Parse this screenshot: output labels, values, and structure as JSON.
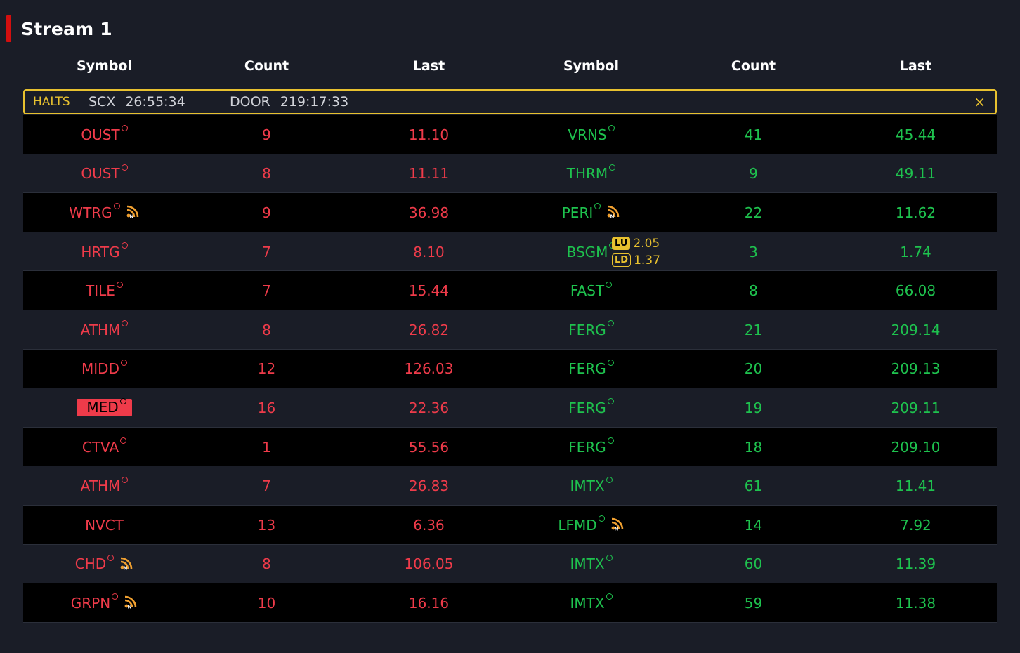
{
  "header": {
    "title": "Stream 1"
  },
  "columns": [
    "Symbol",
    "Count",
    "Last",
    "Symbol",
    "Count",
    "Last"
  ],
  "halts": {
    "label": "HALTS",
    "items": [
      {
        "symbol": "SCX",
        "time": "26:55:34"
      },
      {
        "symbol": "DOOR",
        "time": "219:17:33"
      }
    ],
    "close_icon": "×"
  },
  "colors": {
    "down": "#ef3b4a",
    "up": "#1ec24e",
    "halt_accent": "#e8c12f",
    "news": "#f0a030"
  },
  "rows": [
    {
      "left": {
        "symbol": "OUST",
        "count": "9",
        "last": "11.10",
        "dot": true,
        "news": false
      },
      "right": {
        "symbol": "VRNS",
        "count": "41",
        "last": "45.44",
        "dot": true,
        "news": false
      }
    },
    {
      "left": {
        "symbol": "OUST",
        "count": "8",
        "last": "11.11",
        "dot": true,
        "news": false
      },
      "right": {
        "symbol": "THRM",
        "count": "9",
        "last": "49.11",
        "dot": true,
        "news": false
      }
    },
    {
      "left": {
        "symbol": "WTRG",
        "count": "9",
        "last": "36.98",
        "dot": true,
        "news": true
      },
      "right": {
        "symbol": "PERI",
        "count": "22",
        "last": "11.62",
        "dot": true,
        "news": true
      }
    },
    {
      "left": {
        "symbol": "HRTG",
        "count": "7",
        "last": "8.10",
        "dot": true,
        "news": false
      },
      "right": {
        "symbol": "BSGM",
        "count": "3",
        "last": "1.74",
        "dot": true,
        "news": false,
        "luld": {
          "lu_label": "LU",
          "lu_value": "2.05",
          "ld_label": "LD",
          "ld_value": "1.37"
        }
      }
    },
    {
      "left": {
        "symbol": "TILE",
        "count": "7",
        "last": "15.44",
        "dot": true,
        "news": false
      },
      "right": {
        "symbol": "FAST",
        "count": "8",
        "last": "66.08",
        "dot": true,
        "news": false
      }
    },
    {
      "left": {
        "symbol": "ATHM",
        "count": "8",
        "last": "26.82",
        "dot": true,
        "news": false
      },
      "right": {
        "symbol": "FERG",
        "count": "21",
        "last": "209.14",
        "dot": true,
        "news": false
      }
    },
    {
      "left": {
        "symbol": "MIDD",
        "count": "12",
        "last": "126.03",
        "dot": true,
        "news": false
      },
      "right": {
        "symbol": "FERG",
        "count": "20",
        "last": "209.13",
        "dot": true,
        "news": false
      }
    },
    {
      "left": {
        "symbol": "MED",
        "count": "16",
        "last": "22.36",
        "dot": true,
        "news": false,
        "highlight": true
      },
      "right": {
        "symbol": "FERG",
        "count": "19",
        "last": "209.11",
        "dot": true,
        "news": false
      }
    },
    {
      "left": {
        "symbol": "CTVA",
        "count": "1",
        "last": "55.56",
        "dot": true,
        "news": false
      },
      "right": {
        "symbol": "FERG",
        "count": "18",
        "last": "209.10",
        "dot": true,
        "news": false
      }
    },
    {
      "left": {
        "symbol": "ATHM",
        "count": "7",
        "last": "26.83",
        "dot": true,
        "news": false
      },
      "right": {
        "symbol": "IMTX",
        "count": "61",
        "last": "11.41",
        "dot": true,
        "news": false
      }
    },
    {
      "left": {
        "symbol": "NVCT",
        "count": "13",
        "last": "6.36",
        "dot": false,
        "news": false
      },
      "right": {
        "symbol": "LFMD",
        "count": "14",
        "last": "7.92",
        "dot": true,
        "news": true
      }
    },
    {
      "left": {
        "symbol": "CHD",
        "count": "8",
        "last": "106.05",
        "dot": true,
        "news": true
      },
      "right": {
        "symbol": "IMTX",
        "count": "60",
        "last": "11.39",
        "dot": true,
        "news": false
      }
    },
    {
      "left": {
        "symbol": "GRPN",
        "count": "10",
        "last": "16.16",
        "dot": true,
        "news": true
      },
      "right": {
        "symbol": "IMTX",
        "count": "59",
        "last": "11.38",
        "dot": true,
        "news": false
      }
    }
  ]
}
